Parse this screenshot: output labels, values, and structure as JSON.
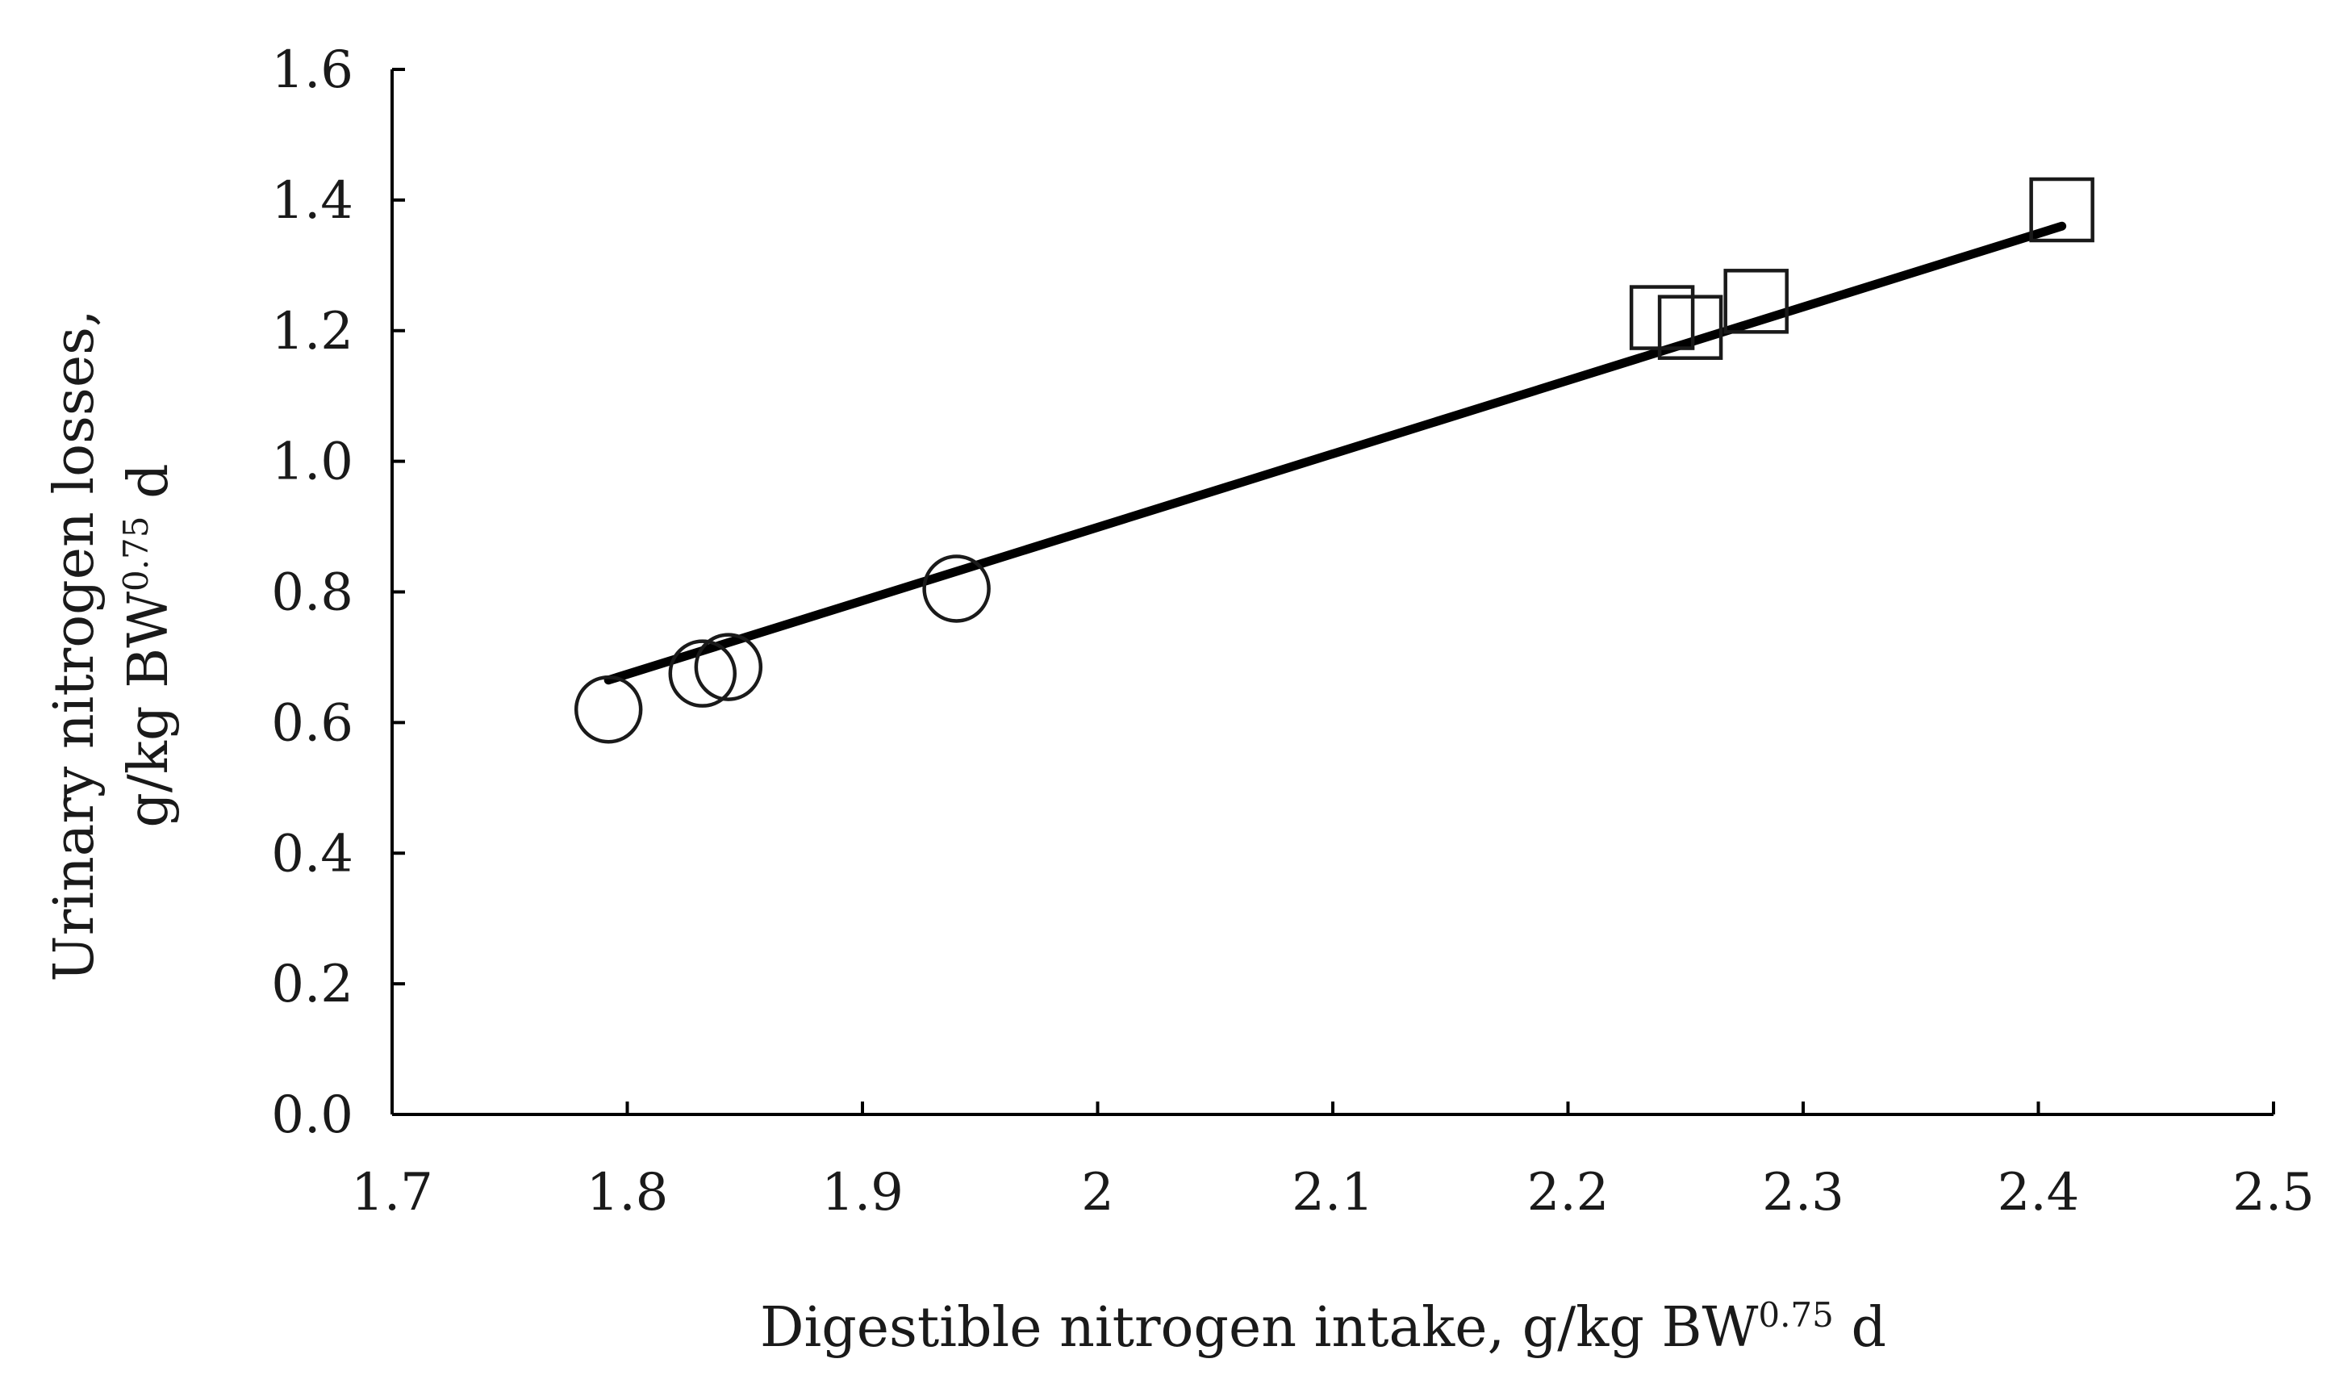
{
  "chart_data": {
    "type": "scatter",
    "title": "",
    "xlabel": {
      "main": "Digestible nitrogen intake, g/kg BW",
      "superscript": "0.75",
      "suffix": " d"
    },
    "ylabel": {
      "line1": "Urinary nitrogen losses,",
      "line2_main": "g/kg BW",
      "line2_superscript": "0.75",
      "line2_suffix": " d"
    },
    "xlim": [
      1.7,
      2.5
    ],
    "ylim": [
      0.0,
      1.6
    ],
    "xticks": [
      "1.7",
      "1.8",
      "1.9",
      "2",
      "2.1",
      "2.2",
      "2.3",
      "2.4",
      "2.5"
    ],
    "yticks": [
      "0.0",
      "0.2",
      "0.4",
      "0.6",
      "0.8",
      "1.0",
      "1.2",
      "1.4",
      "1.6"
    ],
    "grid": false,
    "legend": "none",
    "series": [
      {
        "marker": "circle",
        "points": [
          {
            "x": 1.792,
            "y": 0.62
          },
          {
            "x": 1.832,
            "y": 0.675
          },
          {
            "x": 1.843,
            "y": 0.685
          },
          {
            "x": 1.94,
            "y": 0.805
          }
        ]
      },
      {
        "marker": "square",
        "points": [
          {
            "x": 2.24,
            "y": 1.22
          },
          {
            "x": 2.252,
            "y": 1.205
          },
          {
            "x": 2.28,
            "y": 1.245
          },
          {
            "x": 2.41,
            "y": 1.385
          }
        ]
      }
    ],
    "trendline": {
      "type": "linear",
      "x_start": 1.792,
      "y_start": 0.665,
      "x_end": 2.41,
      "y_end": 1.36
    },
    "colors": {
      "axis": "#000000",
      "marker_stroke": "#1a1a1a",
      "marker_fill": "#ffffff",
      "trendline": "#000000"
    }
  }
}
